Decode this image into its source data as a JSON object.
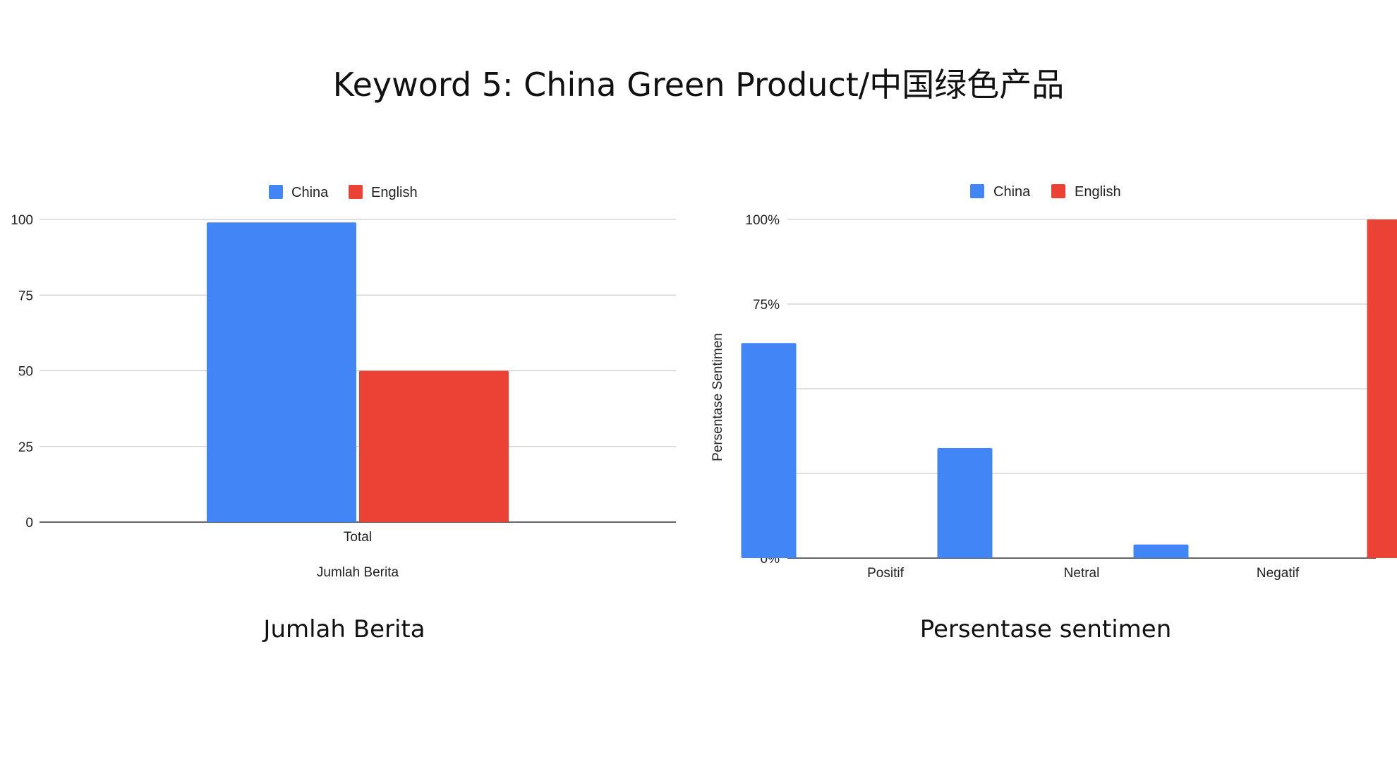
{
  "page": {
    "title": "Keyword 5: China Green Product/中国绿色产品"
  },
  "captions": {
    "left": "Jumlah Berita",
    "right": "Persentase sentimen"
  },
  "colors": {
    "china": "#4285F4",
    "english": "#EA4335",
    "grid": "#cccccc",
    "axis": "#333333"
  },
  "chart_data": [
    {
      "type": "bar",
      "title": "",
      "categories": [
        "Total"
      ],
      "series": [
        {
          "name": "China",
          "values": [
            99
          ]
        },
        {
          "name": "English",
          "values": [
            50
          ]
        }
      ],
      "xlabel": "Jumlah Berita",
      "ylabel": "",
      "ylim": [
        0,
        100
      ],
      "yticks": [
        "0",
        "25",
        "50",
        "75",
        "100"
      ],
      "grid": true,
      "legend": "top"
    },
    {
      "type": "bar",
      "title": "",
      "categories": [
        "Positif",
        "Netral",
        "Negatif"
      ],
      "series": [
        {
          "name": "China",
          "values": [
            0.635,
            0.325,
            0.04
          ]
        },
        {
          "name": "English",
          "values": [
            0,
            0,
            1.0
          ]
        }
      ],
      "xlabel": "",
      "ylabel": "Persentase Sentimen",
      "ylim": [
        0,
        1
      ],
      "yticks": [
        "0%",
        "25%",
        "50%",
        "75%",
        "100%"
      ],
      "grid": true,
      "legend": "top"
    }
  ]
}
